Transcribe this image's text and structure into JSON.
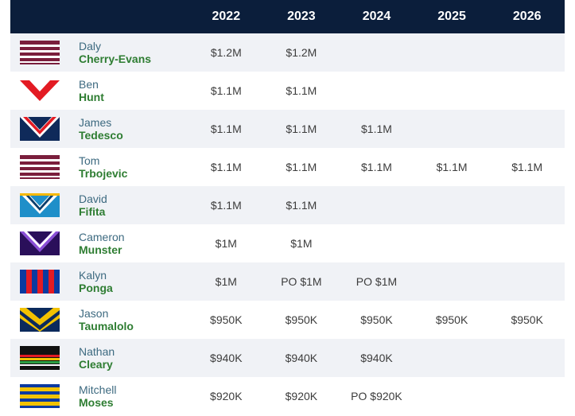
{
  "header": {
    "years": [
      "2022",
      "2023",
      "2024",
      "2025",
      "2026"
    ]
  },
  "colors": {
    "header_bg": "#0b1e3b",
    "first_name": "#3d6a80",
    "last_name": "#2e7d32"
  },
  "rows": [
    {
      "first": "Daly",
      "last": "Cherry-Evans",
      "club_icon": "manly-jersey-icon",
      "values": [
        "$1.2M",
        "$1.2M",
        "",
        "",
        ""
      ]
    },
    {
      "first": "Ben",
      "last": "Hunt",
      "club_icon": "dragons-jersey-icon",
      "values": [
        "$1.1M",
        "$1.1M",
        "",
        "",
        ""
      ]
    },
    {
      "first": "James",
      "last": "Tedesco",
      "club_icon": "roosters-jersey-icon",
      "values": [
        "$1.1M",
        "$1.1M",
        "$1.1M",
        "",
        ""
      ]
    },
    {
      "first": "Tom",
      "last": "Trbojevic",
      "club_icon": "manly-jersey-icon",
      "values": [
        "$1.1M",
        "$1.1M",
        "$1.1M",
        "$1.1M",
        "$1.1M"
      ]
    },
    {
      "first": "David",
      "last": "Fifita",
      "club_icon": "titans-jersey-icon",
      "values": [
        "$1.1M",
        "$1.1M",
        "",
        "",
        ""
      ]
    },
    {
      "first": "Cameron",
      "last": "Munster",
      "club_icon": "storm-jersey-icon",
      "values": [
        "$1M",
        "$1M",
        "",
        "",
        ""
      ]
    },
    {
      "first": "Kalyn",
      "last": "Ponga",
      "club_icon": "knights-jersey-icon",
      "values": [
        "$1M",
        "PO $1M",
        "PO $1M",
        "",
        ""
      ]
    },
    {
      "first": "Jason",
      "last": "Taumalolo",
      "club_icon": "cowboys-jersey-icon",
      "values": [
        "$950K",
        "$950K",
        "$950K",
        "$950K",
        "$950K"
      ]
    },
    {
      "first": "Nathan",
      "last": "Cleary",
      "club_icon": "panthers-jersey-icon",
      "values": [
        "$940K",
        "$940K",
        "$940K",
        "",
        ""
      ]
    },
    {
      "first": "Mitchell",
      "last": "Moses",
      "club_icon": "eels-jersey-icon",
      "values": [
        "$920K",
        "$920K",
        "PO $920K",
        "",
        ""
      ]
    }
  ]
}
